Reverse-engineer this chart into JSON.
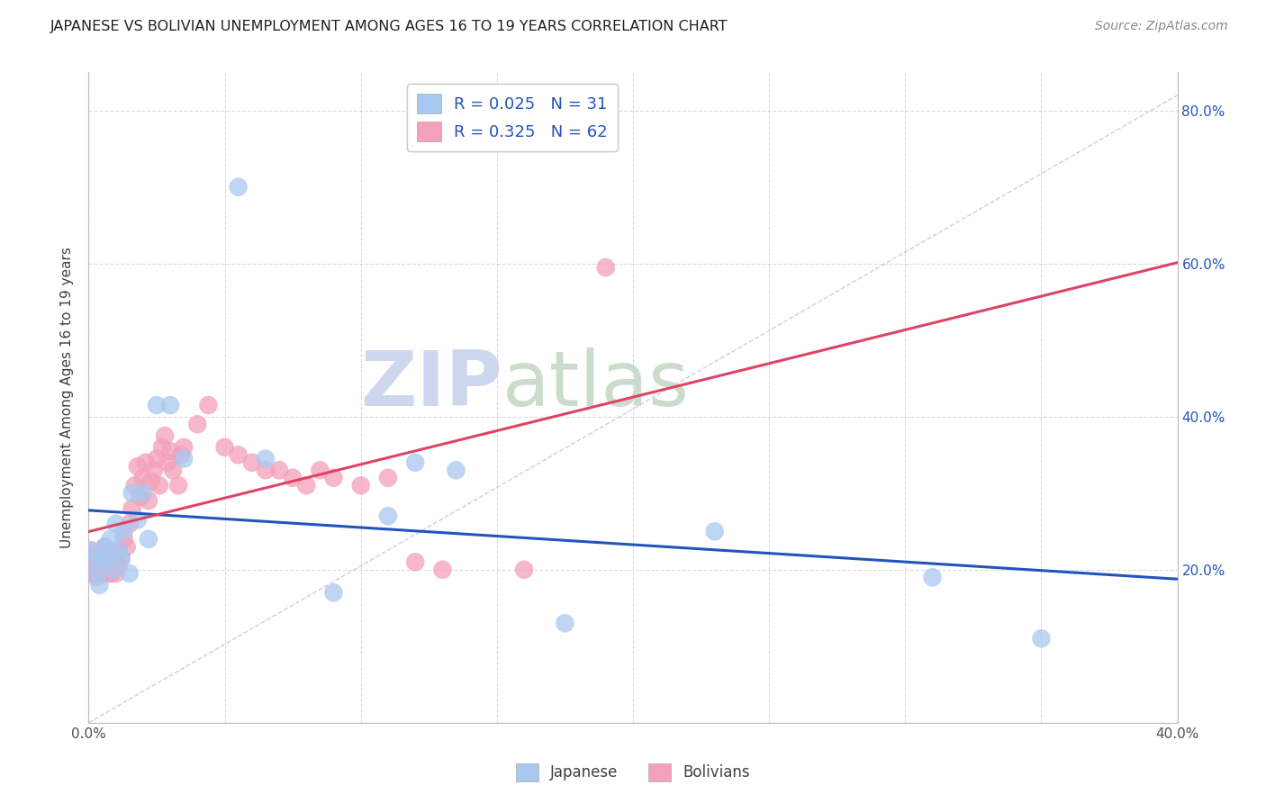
{
  "title": "JAPANESE VS BOLIVIAN UNEMPLOYMENT AMONG AGES 16 TO 19 YEARS CORRELATION CHART",
  "source": "Source: ZipAtlas.com",
  "ylabel": "Unemployment Among Ages 16 to 19 years",
  "xlim": [
    0.0,
    0.4
  ],
  "ylim": [
    0.0,
    0.85
  ],
  "japanese_color": "#a8c8f0",
  "bolivian_color": "#f4a0b8",
  "japanese_line_color": "#2255bb",
  "bolivian_line_color": "#dd4466",
  "diagonal_line_color": "#c8b8d8",
  "legend_R_color": "#2255bb",
  "watermark_zip_color": "#c8d4ee",
  "watermark_atlas_color": "#c8d8c8",
  "japanese_R": 0.025,
  "japanese_N": 31,
  "bolivian_R": 0.325,
  "bolivian_N": 62,
  "japanese_x": [
    0.001,
    0.002,
    0.003,
    0.004,
    0.005,
    0.006,
    0.007,
    0.008,
    0.009,
    0.01,
    0.011,
    0.012,
    0.013,
    0.015,
    0.016,
    0.018,
    0.02,
    0.022,
    0.025,
    0.03,
    0.035,
    0.055,
    0.065,
    0.09,
    0.11,
    0.12,
    0.135,
    0.175,
    0.23,
    0.31,
    0.35
  ],
  "japanese_y": [
    0.225,
    0.215,
    0.195,
    0.18,
    0.21,
    0.23,
    0.22,
    0.24,
    0.2,
    0.26,
    0.225,
    0.215,
    0.25,
    0.195,
    0.3,
    0.265,
    0.3,
    0.24,
    0.415,
    0.415,
    0.345,
    0.7,
    0.345,
    0.17,
    0.27,
    0.34,
    0.33,
    0.13,
    0.25,
    0.19,
    0.11
  ],
  "bolivian_x": [
    0.001,
    0.001,
    0.002,
    0.002,
    0.003,
    0.003,
    0.004,
    0.004,
    0.005,
    0.005,
    0.006,
    0.006,
    0.007,
    0.007,
    0.008,
    0.008,
    0.009,
    0.009,
    0.01,
    0.01,
    0.011,
    0.011,
    0.012,
    0.013,
    0.014,
    0.015,
    0.016,
    0.017,
    0.018,
    0.019,
    0.02,
    0.021,
    0.022,
    0.023,
    0.024,
    0.025,
    0.026,
    0.027,
    0.028,
    0.029,
    0.03,
    0.031,
    0.033,
    0.034,
    0.035,
    0.04,
    0.044,
    0.05,
    0.055,
    0.06,
    0.065,
    0.07,
    0.075,
    0.08,
    0.085,
    0.09,
    0.1,
    0.11,
    0.12,
    0.13,
    0.16,
    0.19
  ],
  "bolivian_y": [
    0.225,
    0.2,
    0.215,
    0.195,
    0.21,
    0.19,
    0.205,
    0.22,
    0.195,
    0.215,
    0.2,
    0.23,
    0.195,
    0.215,
    0.205,
    0.195,
    0.21,
    0.22,
    0.195,
    0.215,
    0.205,
    0.225,
    0.215,
    0.24,
    0.23,
    0.26,
    0.28,
    0.31,
    0.335,
    0.295,
    0.32,
    0.34,
    0.29,
    0.315,
    0.33,
    0.345,
    0.31,
    0.36,
    0.375,
    0.34,
    0.355,
    0.33,
    0.31,
    0.35,
    0.36,
    0.39,
    0.415,
    0.36,
    0.35,
    0.34,
    0.33,
    0.33,
    0.32,
    0.31,
    0.33,
    0.32,
    0.31,
    0.32,
    0.21,
    0.2,
    0.2,
    0.595
  ],
  "background_color": "#ffffff",
  "grid_color": "#cccccc"
}
